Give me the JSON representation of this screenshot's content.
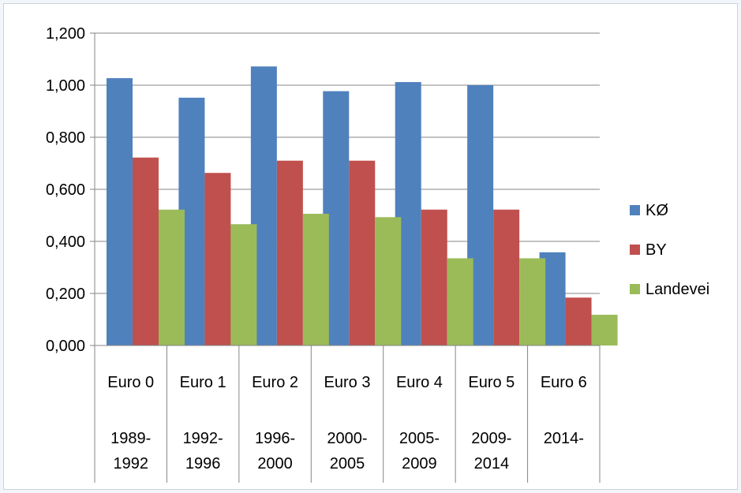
{
  "chart_data": {
    "type": "bar",
    "title": "",
    "xlabel": "",
    "ylabel": "",
    "ylim": [
      0,
      1.2
    ],
    "y_ticks": [
      "0,000",
      "0,200",
      "0,400",
      "0,600",
      "0,800",
      "1,000",
      "1,200"
    ],
    "grid": true,
    "legend_position": "right",
    "categories": [
      {
        "name": "Euro 0",
        "years": [
          "1989-",
          "1992"
        ]
      },
      {
        "name": "Euro 1",
        "years": [
          "1992-",
          "1996"
        ]
      },
      {
        "name": "Euro 2",
        "years": [
          "1996-",
          "2000"
        ]
      },
      {
        "name": "Euro 3",
        "years": [
          "2000-",
          "2005"
        ]
      },
      {
        "name": "Euro 4",
        "years": [
          "2005-",
          "2009"
        ]
      },
      {
        "name": "Euro 5",
        "years": [
          "2009-",
          "2014"
        ]
      },
      {
        "name": "Euro 6",
        "years": [
          "2014-"
        ]
      }
    ],
    "series": [
      {
        "name": "KØ",
        "color": "#4f81bd",
        "values": [
          1.027,
          0.952,
          1.072,
          0.977,
          1.012,
          1.0,
          0.358
        ]
      },
      {
        "name": "BY",
        "color": "#c0504d",
        "values": [
          0.722,
          0.663,
          0.71,
          0.71,
          0.522,
          0.522,
          0.184
        ]
      },
      {
        "name": "Landevei",
        "color": "#9bbb59",
        "values": [
          0.522,
          0.466,
          0.506,
          0.493,
          0.335,
          0.335,
          0.118
        ]
      }
    ]
  }
}
